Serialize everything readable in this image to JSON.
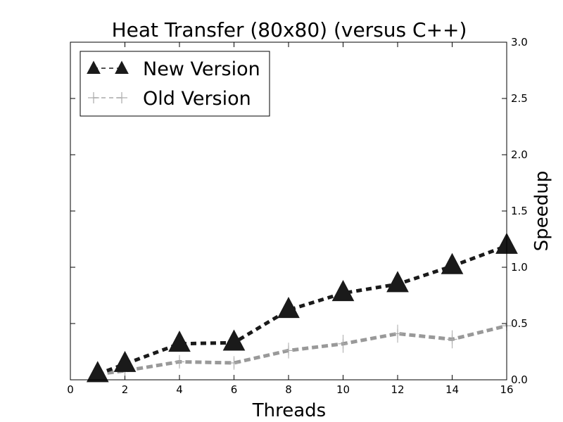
{
  "chart_data": {
    "type": "line",
    "title": "Heat Transfer (80x80) (versus C++)",
    "xlabel": "Threads",
    "ylabel": "Speedup",
    "xlim": [
      0,
      16
    ],
    "ylim": [
      0.0,
      3.0
    ],
    "x_ticks": [
      "0",
      "2",
      "4",
      "6",
      "8",
      "10",
      "12",
      "14",
      "16"
    ],
    "y_ticks": [
      "0.0",
      "0.5",
      "1.0",
      "1.5",
      "2.0",
      "2.5",
      "3.0"
    ],
    "y_axis_side": "right",
    "grid": false,
    "legend_position": "top-left",
    "series": [
      {
        "name": "New Version",
        "color": "#1a1a1a",
        "marker": "triangle",
        "x": [
          1,
          2,
          4,
          6,
          8,
          10,
          12,
          14,
          16
        ],
        "y": [
          0.05,
          0.14,
          0.32,
          0.33,
          0.62,
          0.77,
          0.85,
          1.01,
          1.19
        ],
        "errors": [
          0.02,
          0.02,
          0.03,
          0.03,
          0.03,
          0.03,
          0.03,
          0.03,
          0.03
        ]
      },
      {
        "name": "Old Version",
        "color": "#999999",
        "marker": "plus",
        "x": [
          1,
          2,
          4,
          6,
          8,
          10,
          12,
          14,
          16
        ],
        "y": [
          0.05,
          0.08,
          0.16,
          0.15,
          0.26,
          0.32,
          0.41,
          0.36,
          0.48
        ],
        "errors": [
          0.03,
          0.04,
          0.06,
          0.06,
          0.07,
          0.08,
          0.08,
          0.08,
          0.06
        ]
      }
    ]
  }
}
